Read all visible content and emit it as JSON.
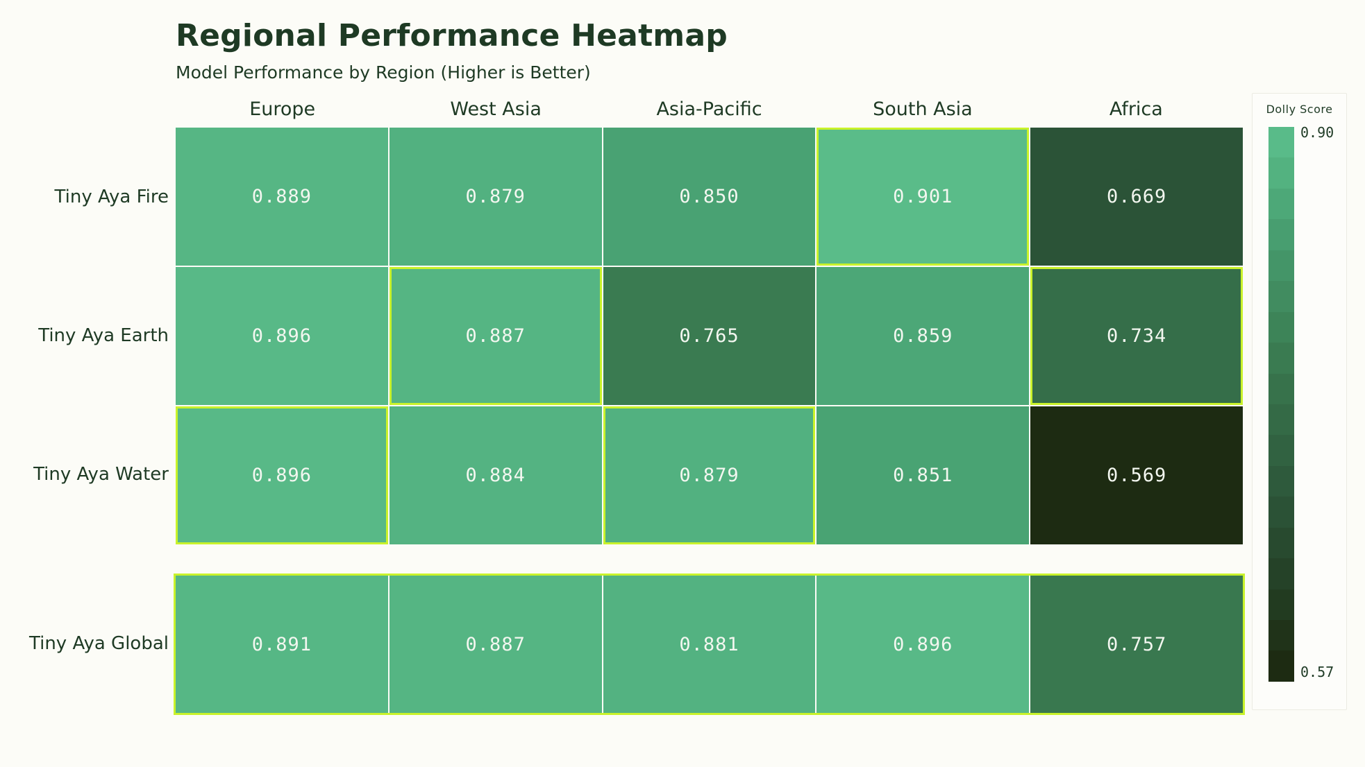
{
  "title": "Regional Performance Heatmap",
  "subtitle": "Model Performance by Region (Higher is Better)",
  "chart_data": {
    "type": "heatmap",
    "columns": [
      "Europe",
      "West Asia",
      "Asia-Pacific",
      "South Asia",
      "Africa"
    ],
    "rows": [
      "Tiny Aya Fire",
      "Tiny Aya Earth",
      "Tiny Aya Water",
      "Tiny Aya Global"
    ],
    "values": [
      [
        0.889,
        0.879,
        0.85,
        0.901,
        0.669
      ],
      [
        0.896,
        0.887,
        0.765,
        0.859,
        0.734
      ],
      [
        0.896,
        0.884,
        0.879,
        0.851,
        0.569
      ],
      [
        0.891,
        0.887,
        0.881,
        0.896,
        0.757
      ]
    ],
    "value_decimals": 3,
    "highlighted_cells": [
      [
        0,
        3
      ],
      [
        1,
        1
      ],
      [
        1,
        4
      ],
      [
        2,
        0
      ],
      [
        2,
        2
      ]
    ],
    "highlighted_row_index": 3,
    "colorbar": {
      "title": "Dolly Score",
      "max_label": "0.90",
      "min_label": "0.57",
      "min": 0.57,
      "max": 0.9,
      "steps": 18
    },
    "layout": {
      "grid_on": false,
      "legend_position": "right",
      "row_gap_before_last_row": true
    },
    "colors": {
      "background": "#fcfcf7",
      "text_dark_green": "#1e3a24",
      "cell_value_text": "#f3f7f0",
      "highlight_border": "#c9f22b",
      "legend_border": "#ebebe2",
      "colormap_anchors": [
        [
          0.57,
          "#1d2b12"
        ],
        [
          0.67,
          "#2b5337"
        ],
        [
          0.765,
          "#3a7b51"
        ],
        [
          0.85,
          "#49a273"
        ],
        [
          0.905,
          "#5bbe8b"
        ]
      ]
    }
  }
}
